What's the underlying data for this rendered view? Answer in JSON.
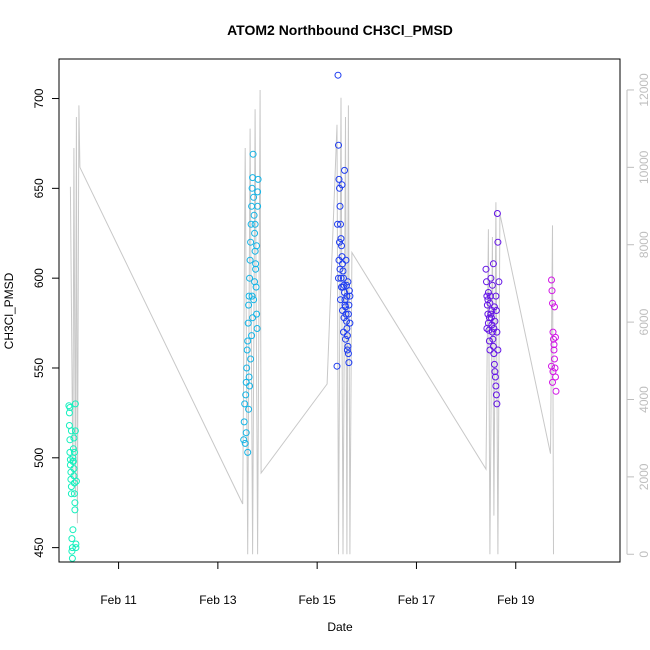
{
  "chart_data": {
    "type": "scatter",
    "title": "ATOM2 Northbound CH3Cl_PMSD",
    "xlabel": "Date",
    "ylabel": "CH3Cl_PMSD",
    "x_range_days": [
      9.8,
      21.1
    ],
    "x_ticks": [
      {
        "value": 11,
        "label": "Feb 11"
      },
      {
        "value": 13,
        "label": "Feb 13"
      },
      {
        "value": 15,
        "label": "Feb 15"
      },
      {
        "value": 17,
        "label": "Feb 17"
      },
      {
        "value": 19,
        "label": "Feb 19"
      }
    ],
    "ylim": [
      442,
      722
    ],
    "y_ticks": [
      450,
      500,
      550,
      600,
      650,
      700
    ],
    "y2lim": [
      -200,
      12800
    ],
    "y2_ticks": [
      0,
      2000,
      4000,
      6000,
      8000,
      10000,
      12000
    ],
    "y2_color": "#bebebe",
    "grid": false,
    "legend": "none",
    "series": [
      {
        "kind": "altitude-line",
        "color": "#c8c8c8",
        "note": "secondary axis",
        "segments": [
          [
            [
              10.03,
              9500
            ],
            [
              10.08,
              2000
            ],
            [
              10.1,
              10500
            ],
            [
              10.13,
              1500
            ],
            [
              10.15,
              11300
            ],
            [
              10.17,
              800
            ],
            [
              10.2,
              11600
            ],
            [
              10.22,
              10000
            ],
            [
              13.5,
              1300
            ],
            [
              13.55,
              10500
            ],
            [
              13.6,
              0
            ],
            [
              13.65,
              11000
            ],
            [
              13.7,
              0
            ],
            [
              13.75,
              11500
            ],
            [
              13.8,
              0
            ],
            [
              13.85,
              12000
            ],
            [
              13.87,
              2100
            ],
            [
              15.2,
              4400
            ],
            [
              15.4,
              11100
            ],
            [
              15.43,
              0
            ],
            [
              15.48,
              11800
            ],
            [
              15.52,
              0
            ],
            [
              15.57,
              11300
            ],
            [
              15.6,
              0
            ],
            [
              15.63,
              11600
            ],
            [
              15.66,
              0
            ],
            [
              15.7,
              7800
            ],
            [
              18.4,
              2200
            ],
            [
              18.45,
              8400
            ],
            [
              18.48,
              0
            ],
            [
              18.53,
              8200
            ],
            [
              18.56,
              1000
            ],
            [
              18.6,
              9100
            ],
            [
              18.64,
              0
            ],
            [
              18.68,
              8800
            ],
            [
              19.7,
              2600
            ],
            [
              19.74,
              8500
            ],
            [
              19.76,
              0
            ]
          ]
        ]
      },
      {
        "kind": "points",
        "name": "",
        "color": "#14f0be",
        "points": [
          [
            10.0,
            529
          ],
          [
            10.01,
            525
          ],
          [
            10.01,
            518
          ],
          [
            10.02,
            510
          ],
          [
            10.02,
            503
          ],
          [
            10.03,
            499
          ],
          [
            10.03,
            496
          ],
          [
            10.04,
            492
          ],
          [
            10.04,
            488
          ],
          [
            10.05,
            484
          ],
          [
            10.05,
            480
          ],
          [
            10.06,
            455
          ],
          [
            10.06,
            448
          ],
          [
            10.07,
            444
          ],
          [
            10.07,
            450
          ],
          [
            10.08,
            460
          ],
          [
            10.08,
            500
          ],
          [
            10.09,
            505
          ],
          [
            10.09,
            498
          ],
          [
            10.1,
            494
          ],
          [
            10.1,
            490
          ],
          [
            10.11,
            486
          ],
          [
            10.11,
            480
          ],
          [
            10.12,
            475
          ],
          [
            10.12,
            471
          ],
          [
            10.13,
            515
          ],
          [
            10.13,
            530
          ],
          [
            10.14,
            452
          ],
          [
            10.14,
            450
          ],
          [
            10.15,
            487
          ],
          [
            10.02,
            528
          ],
          [
            10.05,
            515
          ],
          [
            10.08,
            498
          ],
          [
            10.11,
            503
          ],
          [
            10.1,
            511
          ]
        ]
      },
      {
        "kind": "points",
        "name": "",
        "color": "#14b4e6",
        "points": [
          [
            13.52,
            510
          ],
          [
            13.53,
            520
          ],
          [
            13.54,
            530
          ],
          [
            13.55,
            508
          ],
          [
            13.56,
            535
          ],
          [
            13.57,
            542
          ],
          [
            13.58,
            550
          ],
          [
            13.59,
            560
          ],
          [
            13.6,
            565
          ],
          [
            13.61,
            575
          ],
          [
            13.62,
            585
          ],
          [
            13.63,
            590
          ],
          [
            13.64,
            600
          ],
          [
            13.65,
            610
          ],
          [
            13.66,
            620
          ],
          [
            13.67,
            630
          ],
          [
            13.68,
            640
          ],
          [
            13.69,
            650
          ],
          [
            13.7,
            656
          ],
          [
            13.71,
            669
          ],
          [
            13.72,
            645
          ],
          [
            13.73,
            635
          ],
          [
            13.74,
            625
          ],
          [
            13.75,
            615
          ],
          [
            13.76,
            605
          ],
          [
            13.77,
            595
          ],
          [
            13.78,
            580
          ],
          [
            13.79,
            572
          ],
          [
            13.8,
            648
          ],
          [
            13.81,
            655
          ],
          [
            13.6,
            503
          ],
          [
            13.62,
            527
          ],
          [
            13.64,
            540
          ],
          [
            13.66,
            555
          ],
          [
            13.68,
            568
          ],
          [
            13.7,
            578
          ],
          [
            13.72,
            588
          ],
          [
            13.74,
            598
          ],
          [
            13.76,
            608
          ],
          [
            13.78,
            618
          ],
          [
            13.57,
            514
          ],
          [
            13.63,
            545
          ],
          [
            13.69,
            590
          ],
          [
            13.75,
            630
          ],
          [
            13.8,
            640
          ]
        ]
      },
      {
        "kind": "points",
        "name": "",
        "color": "#1e3cf0",
        "points": [
          [
            15.4,
            551
          ],
          [
            15.42,
            713
          ],
          [
            15.43,
            674
          ],
          [
            15.44,
            655
          ],
          [
            15.45,
            650
          ],
          [
            15.46,
            640
          ],
          [
            15.47,
            630
          ],
          [
            15.48,
            622
          ],
          [
            15.49,
            618
          ],
          [
            15.5,
            612
          ],
          [
            15.51,
            608
          ],
          [
            15.52,
            604
          ],
          [
            15.53,
            600
          ],
          [
            15.54,
            596
          ],
          [
            15.55,
            592
          ],
          [
            15.56,
            588
          ],
          [
            15.57,
            584
          ],
          [
            15.58,
            580
          ],
          [
            15.59,
            576
          ],
          [
            15.6,
            572
          ],
          [
            15.61,
            568
          ],
          [
            15.62,
            562
          ],
          [
            15.63,
            558
          ],
          [
            15.64,
            553
          ],
          [
            15.55,
            660
          ],
          [
            15.5,
            652
          ],
          [
            15.45,
            620
          ],
          [
            15.48,
            600
          ],
          [
            15.52,
            595
          ],
          [
            15.56,
            585
          ],
          [
            15.6,
            590
          ],
          [
            15.63,
            580
          ],
          [
            15.66,
            575
          ],
          [
            15.44,
            610
          ],
          [
            15.46,
            605
          ],
          [
            15.53,
            570
          ],
          [
            15.58,
            610
          ],
          [
            15.62,
            598
          ],
          [
            15.65,
            593
          ],
          [
            15.41,
            630
          ],
          [
            15.47,
            588
          ],
          [
            15.51,
            582
          ],
          [
            15.57,
            566
          ],
          [
            15.61,
            560
          ],
          [
            15.64,
            585
          ],
          [
            15.43,
            600
          ],
          [
            15.49,
            595
          ],
          [
            15.54,
            578
          ],
          [
            15.59,
            596
          ],
          [
            15.66,
            590
          ]
        ]
      },
      {
        "kind": "points",
        "name": "",
        "color": "#6414e6",
        "points": [
          [
            18.4,
            605
          ],
          [
            18.41,
            598
          ],
          [
            18.42,
            590
          ],
          [
            18.43,
            585
          ],
          [
            18.44,
            580
          ],
          [
            18.45,
            575
          ],
          [
            18.46,
            571
          ],
          [
            18.47,
            565
          ],
          [
            18.48,
            560
          ],
          [
            18.49,
            590
          ],
          [
            18.5,
            580
          ],
          [
            18.51,
            578
          ],
          [
            18.52,
            574
          ],
          [
            18.53,
            570
          ],
          [
            18.54,
            566
          ],
          [
            18.55,
            562
          ],
          [
            18.56,
            558
          ],
          [
            18.57,
            552
          ],
          [
            18.58,
            548
          ],
          [
            18.59,
            545
          ],
          [
            18.6,
            540
          ],
          [
            18.61,
            535
          ],
          [
            18.62,
            530
          ],
          [
            18.63,
            636
          ],
          [
            18.64,
            620
          ],
          [
            18.55,
            608
          ],
          [
            18.5,
            600
          ],
          [
            18.45,
            592
          ],
          [
            18.48,
            586
          ],
          [
            18.52,
            582
          ],
          [
            18.58,
            576
          ],
          [
            18.62,
            570
          ],
          [
            18.66,
            598
          ],
          [
            18.44,
            588
          ],
          [
            18.47,
            578
          ],
          [
            18.53,
            596
          ],
          [
            18.57,
            584
          ],
          [
            18.6,
            590
          ],
          [
            18.42,
            572
          ],
          [
            18.56,
            572
          ],
          [
            18.61,
            582
          ],
          [
            18.64,
            560
          ]
        ]
      },
      {
        "kind": "points",
        "name": "",
        "color": "#d214e6",
        "points": [
          [
            19.72,
            599
          ],
          [
            19.73,
            593
          ],
          [
            19.74,
            586
          ],
          [
            19.75,
            570
          ],
          [
            19.76,
            566
          ],
          [
            19.77,
            560
          ],
          [
            19.78,
            555
          ],
          [
            19.79,
            550
          ],
          [
            19.8,
            545
          ],
          [
            19.81,
            537
          ],
          [
            19.72,
            551
          ],
          [
            19.75,
            548
          ],
          [
            19.78,
            584
          ],
          [
            19.8,
            567
          ],
          [
            19.74,
            542
          ],
          [
            19.77,
            563
          ]
        ]
      }
    ]
  }
}
